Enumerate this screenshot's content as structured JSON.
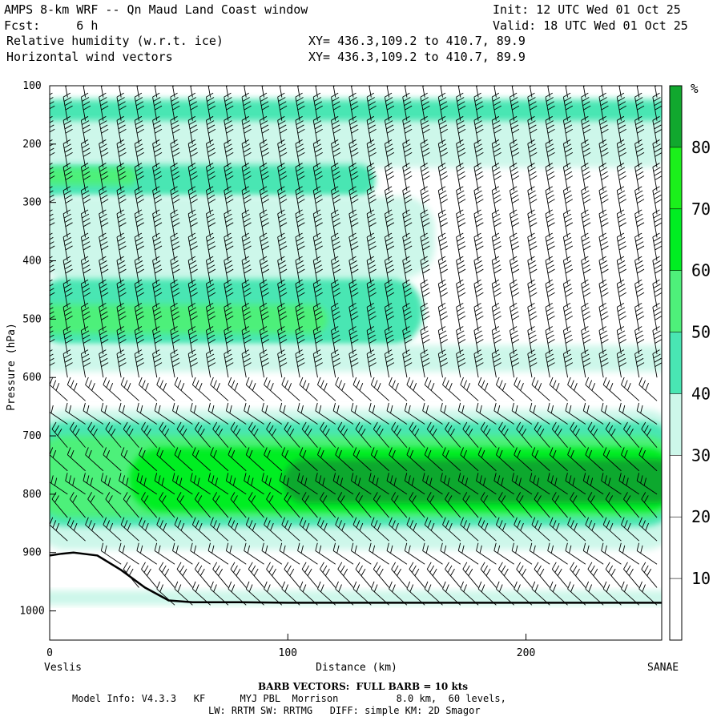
{
  "header": {
    "title": "AMPS 8-km WRF -- Qn Maud Land Coast window",
    "init": "Init: 12 UTC Wed 01 Oct 25",
    "fcst": "Fcst:     6 h",
    "valid": "Valid: 18 UTC Wed 01 Oct 25",
    "field1": "Relative humidity (w.r.t. ice)",
    "field1_xy": "XY= 436.3,109.2 to 410.7, 89.9",
    "field2": "Horizontal wind vectors",
    "field2_xy": "XY= 436.3,109.2 to 410.7, 89.9"
  },
  "footer": {
    "barb": "BARB VECTORS:  FULL BARB = 10 kts",
    "model": "Model Info: V4.3.3   KF      MYJ PBL  Morrison          8.0 km,  60 levels,",
    "physics": "LW: RRTM SW: RRTMG   DIFF: simple KM: 2D Smagor"
  },
  "chart_data": {
    "type": "heatmap",
    "title": "Relative humidity (w.r.t. ice) and horizontal wind vectors",
    "xlabel": "Distance (km)",
    "ylabel": "Pressure (hPa)",
    "xlim": [
      0,
      257
    ],
    "ylim": [
      1050,
      100
    ],
    "x_ticks": [
      0,
      100,
      200
    ],
    "y_ticks": [
      100,
      200,
      300,
      400,
      500,
      600,
      700,
      800,
      900,
      1000
    ],
    "x_start_label": "Veslis",
    "x_end_label": "SANAE",
    "colorbar": {
      "unit": "%",
      "ticks": [
        10,
        20,
        30,
        40,
        50,
        60,
        70,
        80
      ],
      "bins": [
        {
          "from": 0,
          "to": 30,
          "color": "#ffffff"
        },
        {
          "from": 30,
          "to": 40,
          "color": "#cdf7ea"
        },
        {
          "from": 40,
          "to": 50,
          "color": "#49e6b3"
        },
        {
          "from": 50,
          "to": 60,
          "color": "#4ef07a"
        },
        {
          "from": 60,
          "to": 70,
          "color": "#00ee22"
        },
        {
          "from": 70,
          "to": 80,
          "color": "#1bf01b"
        },
        {
          "from": 80,
          "to": 90,
          "color": "#11a82e"
        }
      ]
    },
    "rh_layers": [
      {
        "x0": 0,
        "x1": 257,
        "p_top": 120,
        "p_bot": 240,
        "rh": 35
      },
      {
        "x0": 0,
        "x1": 257,
        "p_top": 125,
        "p_bot": 175,
        "rh": 45
      },
      {
        "x0": 0,
        "x1": 257,
        "p_top": 160,
        "p_bot": 205,
        "rh": 38
      },
      {
        "x0": 0,
        "x1": 130,
        "p_top": 235,
        "p_bot": 290,
        "rh": 45
      },
      {
        "x0": 0,
        "x1": 30,
        "p_top": 240,
        "p_bot": 270,
        "rh": 55
      },
      {
        "x0": 0,
        "x1": 155,
        "p_top": 290,
        "p_bot": 430,
        "rh": 35
      },
      {
        "x0": 0,
        "x1": 150,
        "p_top": 430,
        "p_bot": 545,
        "rh": 45
      },
      {
        "x0": 0,
        "x1": 110,
        "p_top": 475,
        "p_bot": 525,
        "rh": 55
      },
      {
        "x0": 0,
        "x1": 257,
        "p_top": 545,
        "p_bot": 590,
        "rh": 35
      },
      {
        "x0": 0,
        "x1": 257,
        "p_top": 655,
        "p_bot": 895,
        "rh": 35
      },
      {
        "x0": 0,
        "x1": 257,
        "p_top": 675,
        "p_bot": 855,
        "rh": 45
      },
      {
        "x0": 0,
        "x1": 257,
        "p_top": 700,
        "p_bot": 840,
        "rh": 55
      },
      {
        "x0": 40,
        "x1": 257,
        "p_top": 720,
        "p_bot": 830,
        "rh": 65
      },
      {
        "x0": 105,
        "x1": 257,
        "p_top": 740,
        "p_bot": 815,
        "rh": 85
      },
      {
        "x0": 0,
        "x1": 257,
        "p_top": 965,
        "p_bot": 990,
        "rh": 35
      }
    ],
    "terrain": {
      "x_km": [
        0,
        5,
        10,
        20,
        30,
        40,
        50,
        60,
        80,
        100,
        150,
        200,
        257
      ],
      "p_hpa": [
        905,
        902,
        900,
        905,
        930,
        960,
        982,
        985,
        985,
        986,
        986,
        986,
        986
      ]
    },
    "wind_barbs": {
      "columns_x_km": [
        0,
        7.5,
        15,
        22.5,
        30,
        37.5,
        45,
        52.5,
        60,
        67.5,
        75,
        82.5,
        90,
        97.5,
        105,
        112.5,
        120,
        127.5,
        135,
        142.5,
        150,
        157.5,
        165,
        172.5,
        180,
        187.5,
        195,
        202.5,
        210,
        217.5,
        225,
        232.5,
        240,
        247.5,
        255
      ],
      "levels_hpa": [
        120,
        160,
        200,
        240,
        280,
        320,
        360,
        400,
        440,
        480,
        520,
        560,
        600,
        640,
        680,
        720,
        760,
        800,
        840,
        880,
        920,
        960,
        990
      ],
      "full_barb_kts": 10
    }
  }
}
